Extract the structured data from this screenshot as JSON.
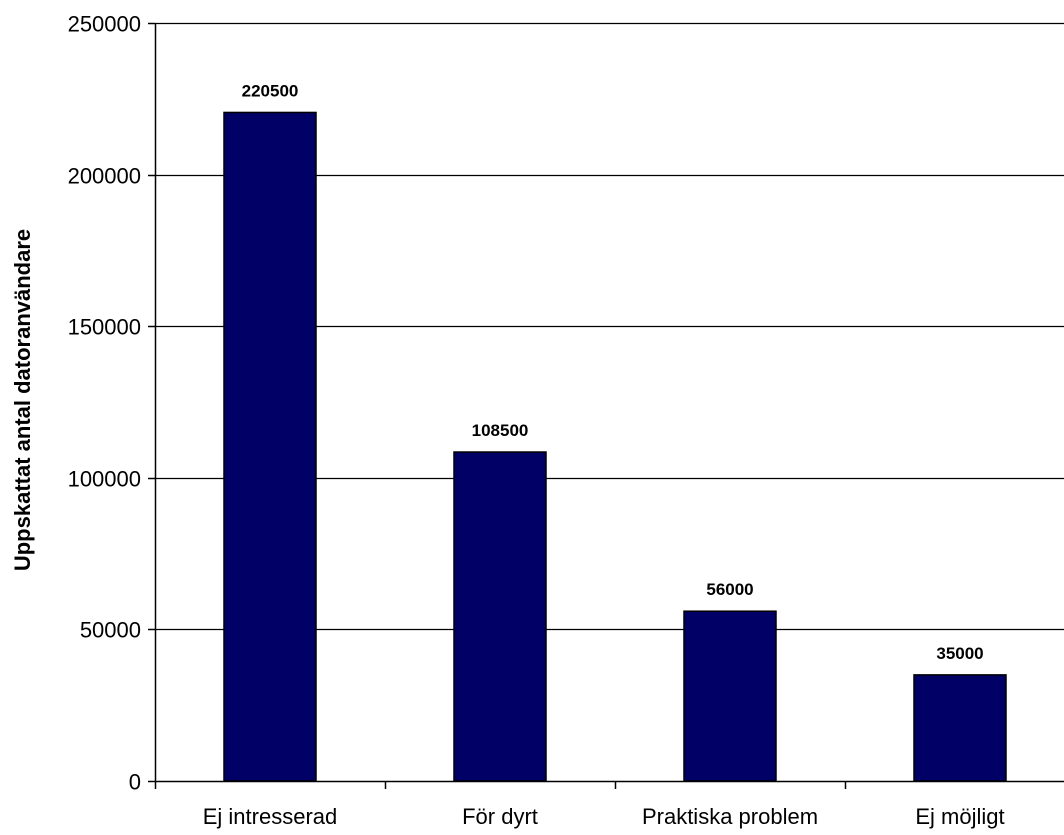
{
  "chart_data": {
    "type": "bar",
    "title": "",
    "xlabel": "",
    "ylabel": "Uppskattat antal datoranvändare",
    "categories": [
      "Ej intresserad",
      "För dyrt",
      "Praktiska problem",
      "Ej möjligt"
    ],
    "values": [
      220500,
      108500,
      56000,
      35000
    ],
    "data_labels": [
      "220500",
      "108500",
      "56000",
      "35000"
    ],
    "ylim": [
      0,
      250000
    ],
    "yticks": [
      0,
      50000,
      100000,
      150000,
      200000,
      250000
    ],
    "ytick_labels": [
      "0",
      "50000",
      "100000",
      "150000",
      "200000",
      "250000"
    ],
    "grid": true,
    "legend": "none",
    "colors": {
      "bar": "#000066",
      "bar_edge": "#000000",
      "grid": "#000000",
      "axis": "#000000",
      "background": "#ffffff"
    }
  }
}
